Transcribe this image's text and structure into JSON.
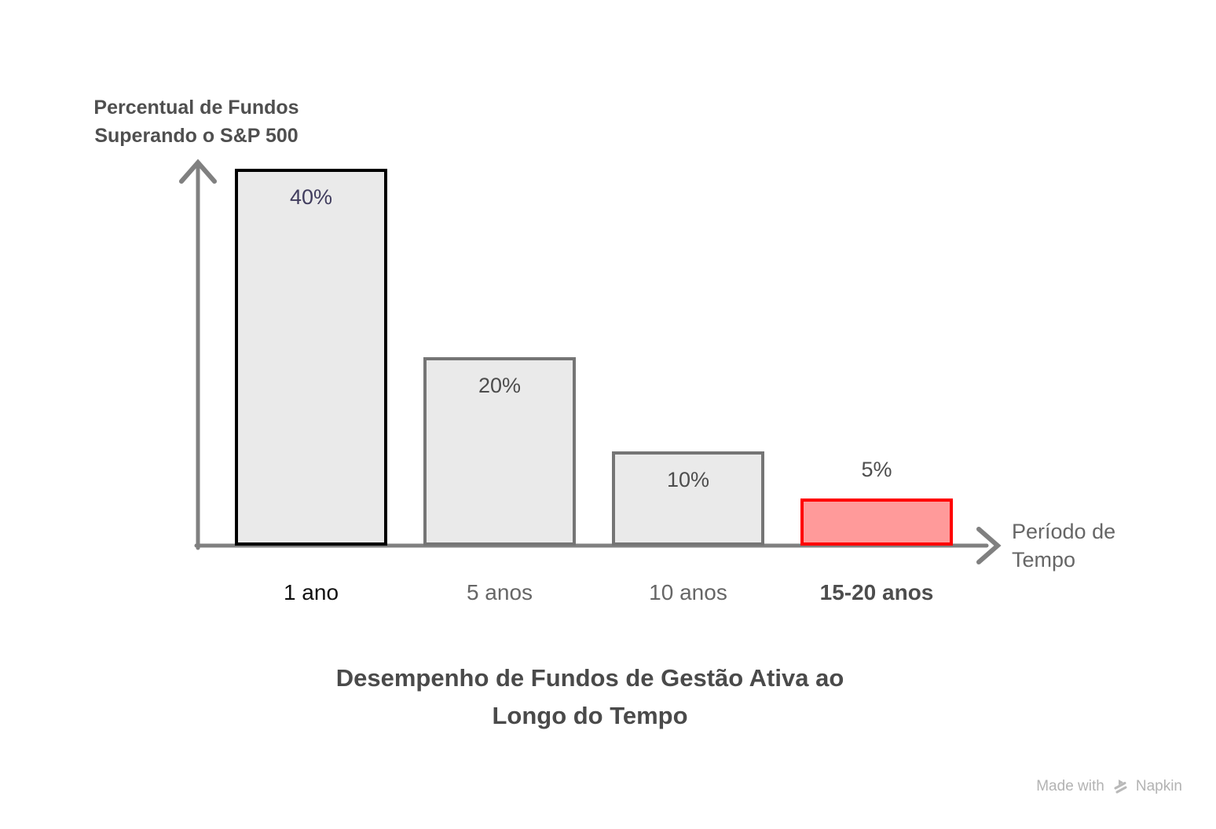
{
  "chart_data": {
    "type": "bar",
    "title": "Desempenho de Fundos de Gestão Ativa ao Longo do Tempo",
    "title_lines": [
      "Desempenho de Fundos de Gestão Ativa ao",
      "Longo do Tempo"
    ],
    "ylabel": "Percentual de Fundos Superando o S&P 500",
    "ylabel_lines": [
      "Percentual de Fundos",
      "Superando o S&P 500"
    ],
    "xlabel": "Período de Tempo",
    "xlabel_lines": [
      "Período de",
      "Tempo"
    ],
    "ylim": [
      0,
      40
    ],
    "grid": false,
    "legend": null,
    "axis_color": "#808080",
    "categories": [
      "1 ano",
      "5 anos",
      "10 anos",
      "15-20 anos"
    ],
    "values": [
      40,
      20,
      10,
      5
    ],
    "bars": [
      {
        "category": "1 ano",
        "value": 40,
        "label": "40%",
        "fill": "#eaeaea",
        "border": "#000000",
        "label_color": "#413d5e",
        "label_position": "inside",
        "category_color": "#111111",
        "category_bold": false
      },
      {
        "category": "5 anos",
        "value": 20,
        "label": "20%",
        "fill": "#eaeaea",
        "border": "#757575",
        "label_color": "#4d4d4d",
        "label_position": "inside",
        "category_color": "#666666",
        "category_bold": false
      },
      {
        "category": "10 anos",
        "value": 10,
        "label": "10%",
        "fill": "#eaeaea",
        "border": "#757575",
        "label_color": "#4d4d4d",
        "label_position": "inside",
        "category_color": "#666666",
        "category_bold": false
      },
      {
        "category": "15-20 anos",
        "value": 5,
        "label": "5%",
        "fill": "#ff9a9a",
        "border": "#ff0000",
        "label_color": "#4d4d4d",
        "label_position": "above",
        "category_color": "#4d4d4d",
        "category_bold": true
      }
    ]
  },
  "watermark": {
    "text_prefix": "Made with",
    "brand": "Napkin",
    "logo": "napkin-logo-icon",
    "color": "#b3b3b3"
  }
}
